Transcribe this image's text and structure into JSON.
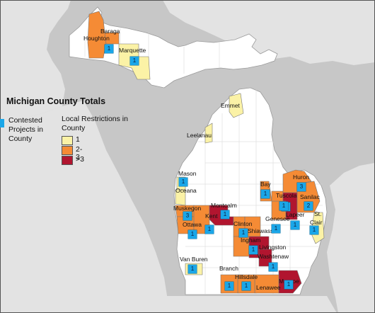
{
  "map": {
    "legend": {
      "title": "Michigan County Totals",
      "contested_label": "Contested Projects in County",
      "local_label": "Local Restrictions in County",
      "classes": [
        {
          "label": "1",
          "color": "#fbf2a6"
        },
        {
          "label": "2-3",
          "color": "#f58b35"
        },
        {
          "label": ">3",
          "color": "#b1152f"
        }
      ]
    },
    "counties": [
      {
        "name": "Baraga",
        "category": "2-3"
      },
      {
        "name": "Houghton",
        "category": "2-3"
      },
      {
        "name": "Marquette",
        "category": "1"
      },
      {
        "name": "Emmet",
        "category": "1"
      },
      {
        "name": "Leelanau",
        "category": "1"
      },
      {
        "name": "Mason",
        "category": "1"
      },
      {
        "name": "Oceana",
        "category": "1"
      },
      {
        "name": "Muskegon",
        "category": "2-3"
      },
      {
        "name": "Ottawa",
        "category": "2-3"
      },
      {
        "name": "Kent",
        "category": "2-3"
      },
      {
        "name": "Montcalm",
        "category": ">3"
      },
      {
        "name": "Clinton",
        "category": "2-3"
      },
      {
        "name": "Shiawassee",
        "category": "2-3"
      },
      {
        "name": "Ingham",
        "category": "2-3"
      },
      {
        "name": "Livingston",
        "category": ">3"
      },
      {
        "name": "Washtenaw",
        "category": ">3"
      },
      {
        "name": "Monroe",
        "category": ">3"
      },
      {
        "name": "Lenawee",
        "category": "2-3"
      },
      {
        "name": "Hillsdale",
        "category": "2-3"
      },
      {
        "name": "Branch",
        "category": "2-3"
      },
      {
        "name": "Van Buren",
        "category": "1"
      },
      {
        "name": "Bay",
        "category": "2-3"
      },
      {
        "name": "Tuscola",
        "category": "2-3"
      },
      {
        "name": "Huron",
        "category": "2-3"
      },
      {
        "name": "Sanilac",
        "category": "2-3"
      },
      {
        "name": "Lapeer",
        "category": ">3"
      },
      {
        "name": "Genesee",
        "category": "2-3"
      },
      {
        "name": "St. Clair",
        "category": "1"
      }
    ],
    "labels": [
      "Baraga",
      "Houghton",
      "Marquette",
      "Emmet",
      "Leelanau",
      "Mason",
      "Oceana",
      "Muskegon",
      "Ottawa",
      "Kent",
      "Montcalm",
      "Clinton",
      "Shiawassee",
      "Ingham",
      "Livingston",
      "Washtenaw",
      "Van Buren",
      "Branch",
      "Hillsdale",
      "Lenawee",
      "Monroe",
      "Bay",
      "Tuscola",
      "Huron",
      "Sanilac",
      "Lapeer",
      "Genesee",
      "St.",
      "Clair"
    ],
    "markers": [
      {
        "county": "Houghton",
        "count": "1"
      },
      {
        "county": "Marquette",
        "count": "1"
      },
      {
        "county": "Oceana",
        "count": "1"
      },
      {
        "county": "Muskegon",
        "count": "3"
      },
      {
        "county": "Ottawa",
        "count": "1"
      },
      {
        "county": "Kent",
        "count": "1"
      },
      {
        "county": "Montcalm",
        "count": "1"
      },
      {
        "county": "Clinton",
        "count": "1"
      },
      {
        "county": "Shiawassee",
        "count": "1"
      },
      {
        "county": "Ingham",
        "count": "1"
      },
      {
        "county": "Bay",
        "count": "1"
      },
      {
        "county": "Huron",
        "count": "3"
      },
      {
        "county": "Tuscola",
        "count": "1"
      },
      {
        "county": "Sanilac",
        "count": "2"
      },
      {
        "county": "Genesee",
        "count": "1"
      },
      {
        "county": "St. Clair",
        "count": "1"
      },
      {
        "county": "Van Buren",
        "count": "1"
      },
      {
        "county": "Hillsdale",
        "count": "1"
      },
      {
        "county": "Lenawee",
        "count": "1"
      },
      {
        "county": "Branch",
        "count": "1"
      },
      {
        "county": "Washtenaw",
        "count": "1"
      },
      {
        "county": "Monroe",
        "count": "1"
      }
    ]
  }
}
